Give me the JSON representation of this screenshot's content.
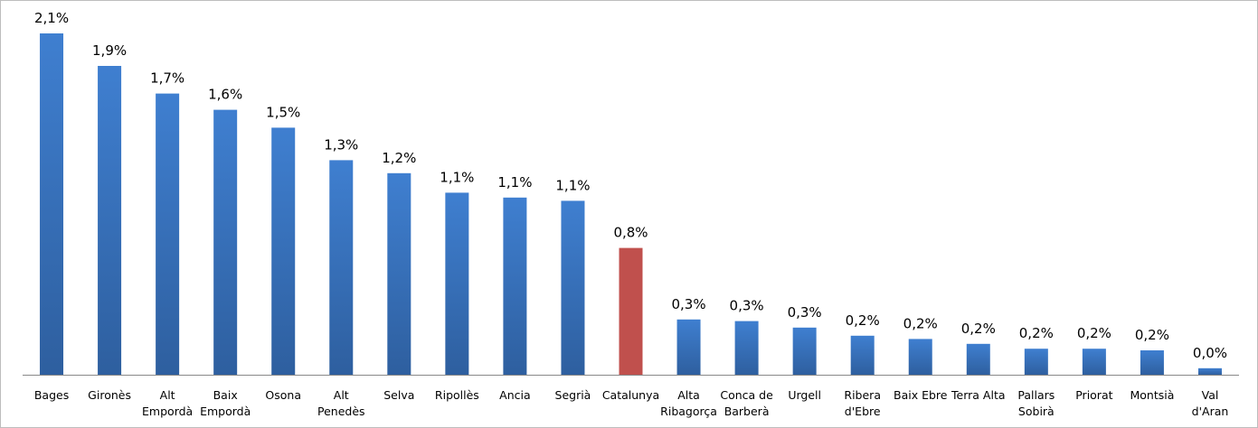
{
  "chart_data": {
    "type": "bar",
    "categories": [
      "Bages",
      "Gironès",
      "Alt\nEmpordà",
      "Baix\nEmpordà",
      "Osona",
      "Alt\nPenedès",
      "Selva",
      "Ripollès",
      "Ancia",
      "Segrià",
      "Catalunya",
      "Alta\nRibagorça",
      "Conca de\nBarberà",
      "Urgell",
      "Ribera\nd'Ebre",
      "Baix Ebre",
      "Terra Alta",
      "Pallars\nSobirà",
      "Priorat",
      "Montsià",
      "Val\nd'Aran"
    ],
    "values": [
      2.1,
      1.9,
      1.73,
      1.63,
      1.52,
      1.32,
      1.24,
      1.12,
      1.09,
      1.07,
      0.78,
      0.34,
      0.33,
      0.29,
      0.24,
      0.22,
      0.19,
      0.16,
      0.16,
      0.15,
      0.04
    ],
    "value_labels": [
      "2,1%",
      "1,9%",
      "1,7%",
      "1,6%",
      "1,5%",
      "1,3%",
      "1,2%",
      "1,1%",
      "1,1%",
      "1,1%",
      "0,8%",
      "0,3%",
      "0,3%",
      "0,3%",
      "0,2%",
      "0,2%",
      "0,2%",
      "0,2%",
      "0,2%",
      "0,2%",
      "0,0%"
    ],
    "colors": [
      "#3b78c6",
      "#3b78c6",
      "#3b78c6",
      "#3b78c6",
      "#3b78c6",
      "#3b78c6",
      "#3b78c6",
      "#3b78c6",
      "#3b78c6",
      "#3b78c6",
      "#c0504d",
      "#3b78c6",
      "#3b78c6",
      "#3b78c6",
      "#3b78c6",
      "#3b78c6",
      "#3b78c6",
      "#3b78c6",
      "#3b78c6",
      "#3b78c6",
      "#3b78c6"
    ]
  }
}
